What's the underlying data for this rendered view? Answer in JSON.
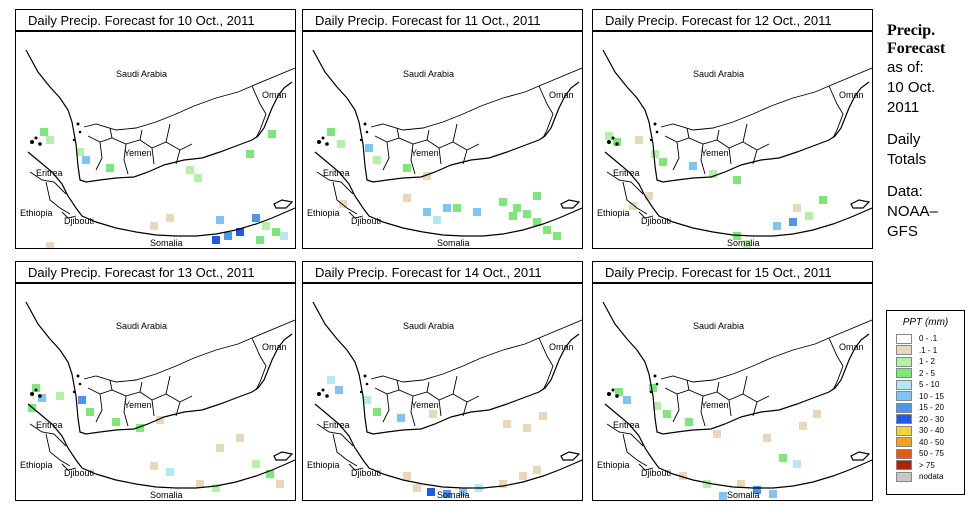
{
  "panels": [
    {
      "title": "Daily Precip. Forecast for  10 Oct., 2011"
    },
    {
      "title": "Daily Precip. Forecast for  11 Oct., 2011"
    },
    {
      "title": "Daily Precip. Forecast for  12 Oct., 2011"
    },
    {
      "title": "Daily Precip. Forecast for  13 Oct., 2011"
    },
    {
      "title": "Daily Precip. Forecast for  14 Oct., 2011"
    },
    {
      "title": "Daily Precip. Forecast for  15 Oct., 2011"
    }
  ],
  "map_labels": {
    "saudi": "Saudi Arabia",
    "oman": "Oman",
    "yemen": "Yemen",
    "eritrea": "Eritrea",
    "ethiopia": "Ethiopia",
    "djibouti": "Djibouti",
    "somalia": "Somalia"
  },
  "side": {
    "heading1": "Precip.",
    "heading2": "Forecast",
    "line1": "as of:",
    "line2": "10 Oct.",
    "line3": "2011",
    "line4": "Daily",
    "line5": "Totals",
    "line6": "Data:",
    "line7": "NOAA–",
    "line8": "GFS"
  },
  "legend": {
    "title": "PPT (mm)",
    "items": [
      {
        "label": "0 - .1",
        "color": "#ffffff"
      },
      {
        "label": ".1 - 1",
        "color": "#e8d7b8"
      },
      {
        "label": "1 - 2",
        "color": "#b5f0a8"
      },
      {
        "label": "2 - 5",
        "color": "#7de87a"
      },
      {
        "label": "5 - 10",
        "color": "#b4e8f5"
      },
      {
        "label": "10 - 15",
        "color": "#7ec4f5"
      },
      {
        "label": "15 - 20",
        "color": "#4a96f0"
      },
      {
        "label": "20 - 30",
        "color": "#1e5ae6"
      },
      {
        "label": "30 - 40",
        "color": "#f5d23c"
      },
      {
        "label": "40 - 50",
        "color": "#f5a01e"
      },
      {
        "label": "50 - 75",
        "color": "#e65a14"
      },
      {
        "label": "> 75",
        "color": "#b41e0a"
      },
      {
        "label": "nodata",
        "color": "#c8c8c8"
      }
    ]
  }
}
